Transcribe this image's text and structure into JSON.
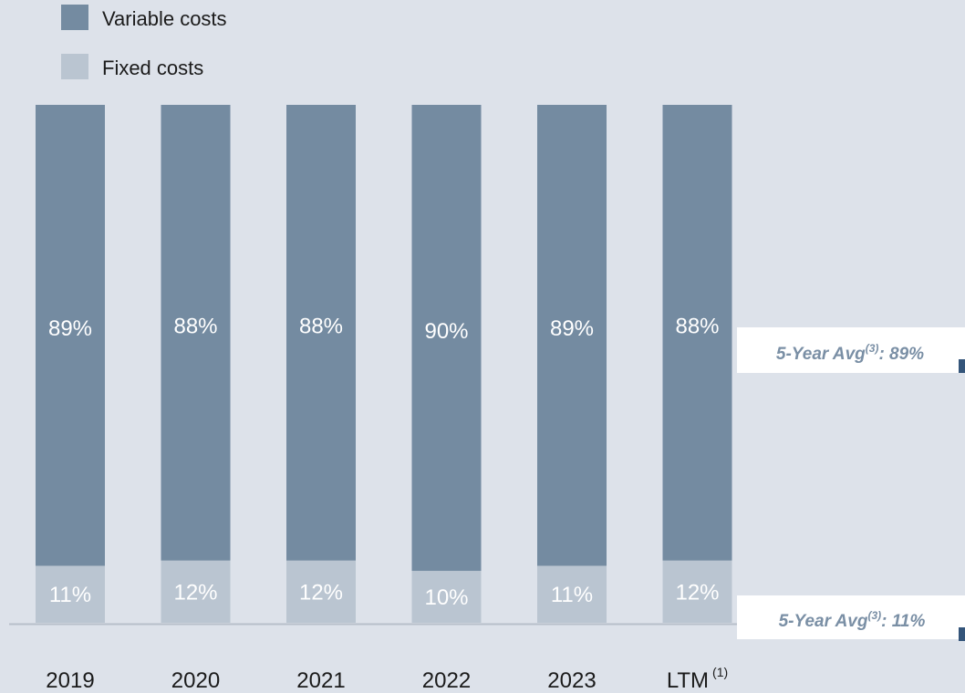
{
  "chart_data": {
    "type": "bar",
    "stacked": true,
    "categories": [
      "2019",
      "2020",
      "2021",
      "2022",
      "2023",
      "LTM"
    ],
    "category_superscripts": [
      "",
      "",
      "",
      "",
      "",
      "(1)"
    ],
    "series": [
      {
        "name": "Fixed costs",
        "values": [
          11,
          12,
          12,
          10,
          11,
          12
        ],
        "color": "#bac5d1"
      },
      {
        "name": "Variable costs",
        "values": [
          89,
          88,
          88,
          90,
          89,
          88
        ],
        "color": "#748ba1"
      }
    ],
    "value_suffix": "%",
    "ylim": [
      0,
      100
    ],
    "legend_position": "top-left",
    "annotations": [
      {
        "prefix": "5-Year Avg",
        "sup": "(3)",
        "suffix": ": 89%",
        "series": "Variable costs"
      },
      {
        "prefix": "5-Year Avg",
        "sup": "(3)",
        "suffix": ": 11%",
        "series": "Fixed costs"
      }
    ],
    "axis_color": "#b7bfc9",
    "marker_color": "#34557a",
    "annotation_bg": "#ffffff",
    "background": "#dde2ea"
  }
}
